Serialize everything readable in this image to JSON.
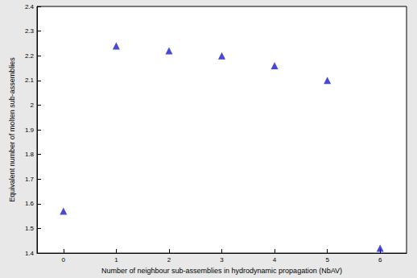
{
  "chart_data": {
    "type": "scatter",
    "x_label": "Number of neighbour sub-assemblies in hydrodynamic propagation (NbAV)",
    "y_label": "Equivalent number of molten sub-assemblies",
    "x": [
      0,
      1,
      2,
      3,
      4,
      5,
      6
    ],
    "values": [
      1.57,
      2.24,
      2.22,
      2.2,
      2.16,
      2.1,
      1.42
    ],
    "color": "#1a1ad0",
    "marker": "triangle",
    "xlim": [
      -0.5,
      6.5
    ],
    "xticks": [
      0,
      1,
      2,
      3,
      4,
      5,
      6
    ],
    "ylim": [
      1.4,
      2.4
    ],
    "yticks": [
      1.4,
      1.5,
      1.6,
      1.7,
      1.8,
      1.9,
      2,
      2.1,
      2.2,
      2.3,
      2.4
    ],
    "grid": false
  }
}
